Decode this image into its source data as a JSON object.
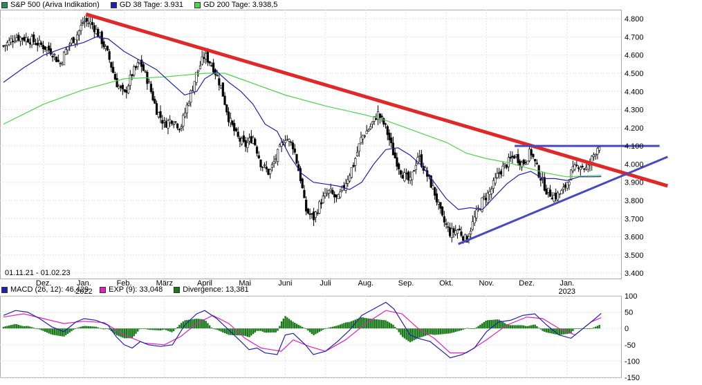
{
  "legend_top": [
    {
      "label": "S&P 500 (Ariva Indikation)",
      "color": "#2e8b57"
    },
    {
      "label": "GD 38 Tage: 3.931",
      "color": "#2020b0"
    },
    {
      "label": "GD 200 Tage: 3.938,5",
      "color": "#4cd24c"
    }
  ],
  "legend_bottom": [
    {
      "label": "MACD (26, 12): 46,429",
      "color": "#2020b0"
    },
    {
      "label": "EXP (9): 33,048",
      "color": "#e020c0"
    },
    {
      "label": "Divergence: 13,381",
      "color": "#1a7a1a"
    }
  ],
  "date_range": "01.11.21 - 01.02.23",
  "chart_data": [
    {
      "type": "candlestick",
      "title": "S&P 500 (Ariva Indikation)",
      "y_ticks": [
        "4.800",
        "4.700",
        "4.600",
        "4.500",
        "4.400",
        "4.300",
        "4.200",
        "4.100",
        "4.000",
        "3.900",
        "3.800",
        "3.700",
        "3.600",
        "3.500",
        "3.400"
      ],
      "ylim": [
        3370,
        4850
      ],
      "x_ticks": [
        {
          "label": "Dez.",
          "month": 1
        },
        {
          "label": "Jan.",
          "month": 2,
          "sub": "2022"
        },
        {
          "label": "Feb.",
          "month": 3
        },
        {
          "label": "März",
          "month": 4
        },
        {
          "label": "April",
          "month": 5
        },
        {
          "label": "Mai",
          "month": 6
        },
        {
          "label": "Juni",
          "month": 7
        },
        {
          "label": "Juli",
          "month": 8
        },
        {
          "label": "Aug.",
          "month": 9
        },
        {
          "label": "Sep.",
          "month": 10
        },
        {
          "label": "Okt.",
          "month": 11
        },
        {
          "label": "Nov.",
          "month": 12
        },
        {
          "label": "Dez.",
          "month": 13
        },
        {
          "label": "Jan.",
          "month": 14,
          "sub": "2023"
        }
      ],
      "close_path": [
        [
          0.0,
          4650
        ],
        [
          0.3,
          4700
        ],
        [
          0.6,
          4690
        ],
        [
          0.9,
          4660
        ],
        [
          1.2,
          4620
        ],
        [
          1.4,
          4550
        ],
        [
          1.6,
          4650
        ],
        [
          1.85,
          4720
        ],
        [
          2.0,
          4790
        ],
        [
          2.2,
          4770
        ],
        [
          2.4,
          4700
        ],
        [
          2.6,
          4600
        ],
        [
          2.8,
          4450
        ],
        [
          3.0,
          4380
        ],
        [
          3.2,
          4500
        ],
        [
          3.4,
          4560
        ],
        [
          3.6,
          4450
        ],
        [
          3.8,
          4300
        ],
        [
          4.0,
          4220
        ],
        [
          4.2,
          4250
        ],
        [
          4.4,
          4200
        ],
        [
          4.6,
          4350
        ],
        [
          4.8,
          4500
        ],
        [
          5.0,
          4600
        ],
        [
          5.2,
          4540
        ],
        [
          5.4,
          4430
        ],
        [
          5.6,
          4250
        ],
        [
          5.8,
          4150
        ],
        [
          6.0,
          4100
        ],
        [
          6.2,
          4150
        ],
        [
          6.4,
          4000
        ],
        [
          6.6,
          3950
        ],
        [
          6.8,
          4050
        ],
        [
          7.0,
          4150
        ],
        [
          7.2,
          4100
        ],
        [
          7.4,
          3900
        ],
        [
          7.5,
          3750
        ],
        [
          7.7,
          3700
        ],
        [
          7.9,
          3800
        ],
        [
          8.1,
          3850
        ],
        [
          8.3,
          3800
        ],
        [
          8.5,
          3900
        ],
        [
          8.7,
          4000
        ],
        [
          8.9,
          4150
        ],
        [
          9.1,
          4200
        ],
        [
          9.3,
          4280
        ],
        [
          9.5,
          4200
        ],
        [
          9.7,
          4050
        ],
        [
          9.9,
          3950
        ],
        [
          10.1,
          3900
        ],
        [
          10.3,
          4050
        ],
        [
          10.5,
          3950
        ],
        [
          10.7,
          3850
        ],
        [
          10.9,
          3700
        ],
        [
          11.1,
          3620
        ],
        [
          11.3,
          3640
        ],
        [
          11.5,
          3580
        ],
        [
          11.7,
          3700
        ],
        [
          11.9,
          3800
        ],
        [
          12.1,
          3850
        ],
        [
          12.3,
          3950
        ],
        [
          12.5,
          4000
        ],
        [
          12.7,
          4050
        ],
        [
          12.9,
          4000
        ],
        [
          13.1,
          4070
        ],
        [
          13.3,
          3950
        ],
        [
          13.5,
          3850
        ],
        [
          13.7,
          3820
        ],
        [
          13.9,
          3850
        ],
        [
          14.1,
          3950
        ],
        [
          14.3,
          4000
        ],
        [
          14.5,
          3970
        ],
        [
          14.7,
          4070
        ],
        [
          14.85,
          4130
        ]
      ],
      "gd38_path": [
        [
          0.0,
          4450
        ],
        [
          0.5,
          4530
        ],
        [
          1.0,
          4600
        ],
        [
          1.5,
          4640
        ],
        [
          2.0,
          4670
        ],
        [
          2.3,
          4700
        ],
        [
          2.6,
          4690
        ],
        [
          3.0,
          4620
        ],
        [
          3.4,
          4570
        ],
        [
          3.8,
          4520
        ],
        [
          4.2,
          4440
        ],
        [
          4.5,
          4380
        ],
        [
          4.8,
          4400
        ],
        [
          5.0,
          4470
        ],
        [
          5.3,
          4510
        ],
        [
          5.6,
          4450
        ],
        [
          5.9,
          4400
        ],
        [
          6.2,
          4330
        ],
        [
          6.5,
          4220
        ],
        [
          6.8,
          4180
        ],
        [
          7.1,
          4050
        ],
        [
          7.4,
          3950
        ],
        [
          7.7,
          3900
        ],
        [
          8.0,
          3890
        ],
        [
          8.3,
          3880
        ],
        [
          8.6,
          3860
        ],
        [
          8.9,
          3900
        ],
        [
          9.2,
          4000
        ],
        [
          9.5,
          4080
        ],
        [
          9.8,
          4090
        ],
        [
          10.1,
          4050
        ],
        [
          10.4,
          3990
        ],
        [
          10.7,
          3900
        ],
        [
          11.0,
          3810
        ],
        [
          11.3,
          3750
        ],
        [
          11.6,
          3760
        ],
        [
          11.9,
          3750
        ],
        [
          12.2,
          3820
        ],
        [
          12.5,
          3890
        ],
        [
          12.8,
          3940
        ],
        [
          13.1,
          3960
        ],
        [
          13.4,
          3920
        ],
        [
          13.7,
          3920
        ],
        [
          14.0,
          3910
        ],
        [
          14.3,
          3930
        ],
        [
          14.6,
          3930
        ],
        [
          14.85,
          3931
        ]
      ],
      "gd200_path": [
        [
          0.0,
          4220
        ],
        [
          1.0,
          4330
        ],
        [
          2.0,
          4410
        ],
        [
          3.0,
          4470
        ],
        [
          4.0,
          4480
        ],
        [
          5.0,
          4500
        ],
        [
          5.5,
          4500
        ],
        [
          6.0,
          4460
        ],
        [
          6.5,
          4420
        ],
        [
          7.0,
          4380
        ],
        [
          8.0,
          4320
        ],
        [
          9.0,
          4270
        ],
        [
          9.5,
          4240
        ],
        [
          10.0,
          4200
        ],
        [
          10.5,
          4160
        ],
        [
          11.0,
          4120
        ],
        [
          11.5,
          4060
        ],
        [
          12.0,
          4030
        ],
        [
          12.5,
          4010
        ],
        [
          13.0,
          3980
        ],
        [
          13.5,
          3950
        ],
        [
          14.0,
          3930
        ],
        [
          14.5,
          3935
        ],
        [
          14.85,
          3938.5
        ]
      ],
      "trendlines": [
        {
          "name": "Abwärtstrend",
          "color": "#e02828",
          "from": [
            2.05,
            4825
          ],
          "to": [
            16.5,
            3880
          ]
        },
        {
          "name": "Aufwärtstrend",
          "color": "#4848c0",
          "from": [
            11.3,
            3560
          ],
          "to": [
            16.5,
            4040
          ]
        },
        {
          "name": "Widerstand",
          "color": "#4848c0",
          "from": [
            12.7,
            4100
          ],
          "to": [
            16.3,
            4100
          ]
        }
      ]
    },
    {
      "type": "macd",
      "title": "MACD (26, 12)",
      "y_ticks": [
        "100",
        "50",
        "0",
        "-50",
        "-100",
        "-150"
      ],
      "ylim": [
        -150,
        100
      ],
      "macd_path": [
        [
          0.0,
          40
        ],
        [
          0.3,
          55
        ],
        [
          0.6,
          50
        ],
        [
          0.9,
          30
        ],
        [
          1.2,
          5
        ],
        [
          1.5,
          -10
        ],
        [
          1.8,
          20
        ],
        [
          2.0,
          30
        ],
        [
          2.3,
          25
        ],
        [
          2.6,
          10
        ],
        [
          2.8,
          -25
        ],
        [
          3.0,
          -50
        ],
        [
          3.2,
          -60
        ],
        [
          3.4,
          -40
        ],
        [
          3.6,
          -50
        ],
        [
          3.9,
          -55
        ],
        [
          4.2,
          -50
        ],
        [
          4.5,
          10
        ],
        [
          4.8,
          45
        ],
        [
          5.0,
          55
        ],
        [
          5.3,
          30
        ],
        [
          5.6,
          -5
        ],
        [
          5.9,
          -40
        ],
        [
          6.1,
          -65
        ],
        [
          6.3,
          -60
        ],
        [
          6.5,
          -75
        ],
        [
          6.8,
          -80
        ],
        [
          7.0,
          -20
        ],
        [
          7.2,
          -15
        ],
        [
          7.5,
          -50
        ],
        [
          7.7,
          -80
        ],
        [
          8.0,
          -70
        ],
        [
          8.3,
          -40
        ],
        [
          8.6,
          -5
        ],
        [
          8.9,
          40
        ],
        [
          9.2,
          60
        ],
        [
          9.5,
          80
        ],
        [
          9.7,
          60
        ],
        [
          9.9,
          20
        ],
        [
          10.1,
          -20
        ],
        [
          10.3,
          -30
        ],
        [
          10.6,
          -40
        ],
        [
          10.9,
          -70
        ],
        [
          11.1,
          -90
        ],
        [
          11.4,
          -80
        ],
        [
          11.7,
          -60
        ],
        [
          12.0,
          -10
        ],
        [
          12.3,
          20
        ],
        [
          12.6,
          25
        ],
        [
          12.9,
          40
        ],
        [
          13.2,
          45
        ],
        [
          13.5,
          10
        ],
        [
          13.8,
          -20
        ],
        [
          14.1,
          -30
        ],
        [
          14.4,
          0
        ],
        [
          14.7,
          30
        ],
        [
          14.85,
          46.429
        ]
      ],
      "exp_path": [
        [
          0.0,
          35
        ],
        [
          0.5,
          45
        ],
        [
          1.0,
          30
        ],
        [
          1.5,
          15
        ],
        [
          2.0,
          22
        ],
        [
          2.5,
          18
        ],
        [
          3.0,
          -20
        ],
        [
          3.5,
          -45
        ],
        [
          4.0,
          -50
        ],
        [
          4.4,
          -25
        ],
        [
          4.8,
          15
        ],
        [
          5.2,
          40
        ],
        [
          5.6,
          15
        ],
        [
          6.0,
          -30
        ],
        [
          6.4,
          -60
        ],
        [
          6.9,
          -70
        ],
        [
          7.2,
          -35
        ],
        [
          7.6,
          -55
        ],
        [
          8.0,
          -70
        ],
        [
          8.5,
          -35
        ],
        [
          9.0,
          15
        ],
        [
          9.5,
          55
        ],
        [
          9.9,
          45
        ],
        [
          10.3,
          0
        ],
        [
          10.7,
          -30
        ],
        [
          11.1,
          -75
        ],
        [
          11.5,
          -75
        ],
        [
          12.0,
          -35
        ],
        [
          12.5,
          10
        ],
        [
          13.0,
          35
        ],
        [
          13.4,
          30
        ],
        [
          13.8,
          0
        ],
        [
          14.2,
          -20
        ],
        [
          14.6,
          20
        ],
        [
          14.85,
          33.048
        ]
      ]
    }
  ]
}
